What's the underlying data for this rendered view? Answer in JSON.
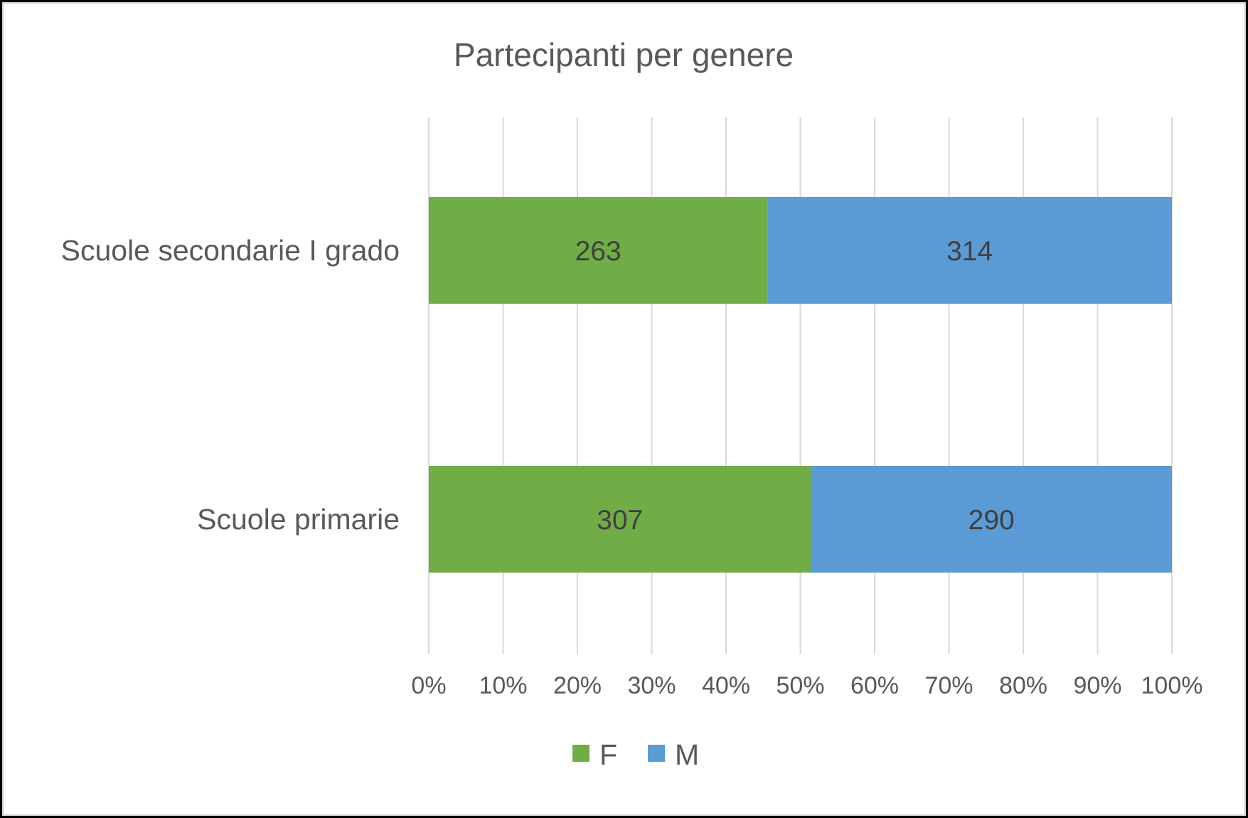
{
  "chart_data": {
    "type": "bar",
    "orientation": "horizontal",
    "stacking": "percent",
    "title": "Partecipanti per genere",
    "categories": [
      "Scuole secondarie I grado",
      "Scuole primarie"
    ],
    "series": [
      {
        "name": "F",
        "values": [
          263,
          307
        ],
        "color": "#70AD47"
      },
      {
        "name": "M",
        "values": [
          314,
          290
        ],
        "color": "#5B9BD5"
      }
    ],
    "x_ticks": [
      "0%",
      "10%",
      "20%",
      "30%",
      "40%",
      "50%",
      "60%",
      "70%",
      "80%",
      "90%",
      "100%"
    ],
    "xlim": [
      0,
      100
    ],
    "grid": true,
    "legend_position": "bottom",
    "data_labels": true
  }
}
